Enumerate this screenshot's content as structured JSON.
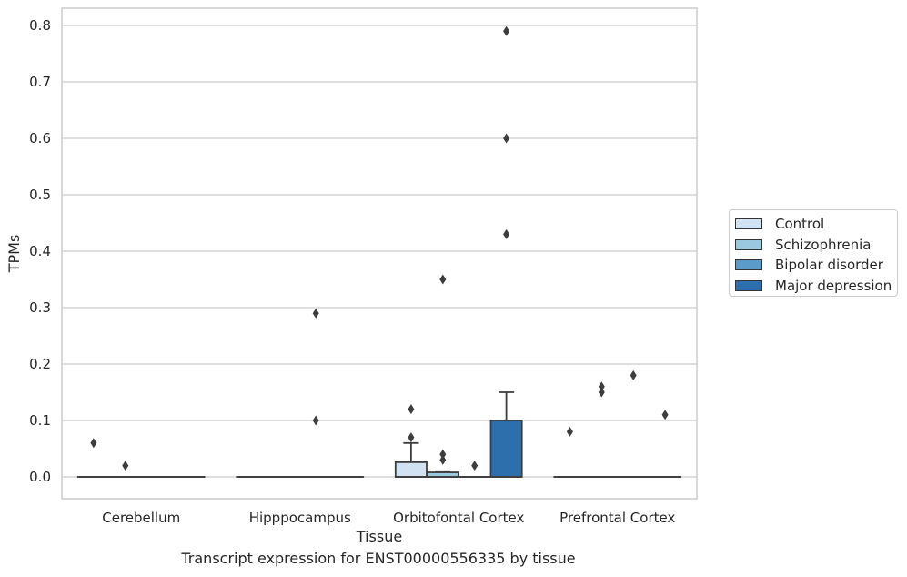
{
  "chart_data": {
    "type": "box",
    "title": "Transcript expression for ENST00000556335 by tissue",
    "xlabel": "Tissue",
    "ylabel": "TPMs",
    "ylim": [
      -0.04,
      0.83
    ],
    "yticks": [
      "0.0",
      "0.1",
      "0.2",
      "0.3",
      "0.4",
      "0.5",
      "0.6",
      "0.7",
      "0.8"
    ],
    "categories": [
      "Cerebellum",
      "Hipppocampus",
      "Orbitofontal Cortex",
      "Prefrontal Cortex"
    ],
    "grid": true,
    "legend_position": "right",
    "series": [
      {
        "name": "Control",
        "color": "#d1e2f2",
        "boxes": [
          {
            "q1": 0,
            "median": 0,
            "q3": 0,
            "whisker_low": 0,
            "whisker_high": 0,
            "outliers": [
              0.06
            ]
          },
          {
            "q1": 0,
            "median": 0,
            "q3": 0,
            "whisker_low": 0,
            "whisker_high": 0,
            "outliers": []
          },
          {
            "q1": 0,
            "median": 0,
            "q3": 0.026,
            "whisker_low": 0,
            "whisker_high": 0.06,
            "outliers": [
              0.07,
              0.12
            ]
          },
          {
            "q1": 0,
            "median": 0,
            "q3": 0,
            "whisker_low": 0,
            "whisker_high": 0,
            "outliers": [
              0.08
            ]
          }
        ]
      },
      {
        "name": "Schizophrenia",
        "color": "#9ac8e0",
        "boxes": [
          {
            "q1": 0,
            "median": 0,
            "q3": 0,
            "whisker_low": 0,
            "whisker_high": 0,
            "outliers": [
              0.02
            ]
          },
          {
            "q1": 0,
            "median": 0,
            "q3": 0,
            "whisker_low": 0,
            "whisker_high": 0,
            "outliers": []
          },
          {
            "q1": 0,
            "median": 0,
            "q3": 0.008,
            "whisker_low": 0,
            "whisker_high": 0.01,
            "outliers": [
              0.03,
              0.04,
              0.35
            ]
          },
          {
            "q1": 0,
            "median": 0,
            "q3": 0,
            "whisker_low": 0,
            "whisker_high": 0,
            "outliers": [
              0.15,
              0.16
            ]
          }
        ]
      },
      {
        "name": "Bipolar disorder",
        "color": "#5a9bc9",
        "boxes": [
          {
            "q1": 0,
            "median": 0,
            "q3": 0,
            "whisker_low": 0,
            "whisker_high": 0,
            "outliers": []
          },
          {
            "q1": 0,
            "median": 0,
            "q3": 0,
            "whisker_low": 0,
            "whisker_high": 0,
            "outliers": [
              0.1,
              0.29
            ]
          },
          {
            "q1": 0,
            "median": 0,
            "q3": 0,
            "whisker_low": 0,
            "whisker_high": 0,
            "outliers": [
              0.02
            ]
          },
          {
            "q1": 0,
            "median": 0,
            "q3": 0,
            "whisker_low": 0,
            "whisker_high": 0,
            "outliers": [
              0.18
            ]
          }
        ]
      },
      {
        "name": "Major depression",
        "color": "#2d6fad",
        "boxes": [
          {
            "q1": 0,
            "median": 0,
            "q3": 0,
            "whisker_low": 0,
            "whisker_high": 0,
            "outliers": []
          },
          {
            "q1": 0,
            "median": 0,
            "q3": 0,
            "whisker_low": 0,
            "whisker_high": 0,
            "outliers": []
          },
          {
            "q1": 0,
            "median": 0,
            "q3": 0.1,
            "whisker_low": 0,
            "whisker_high": 0.15,
            "outliers": [
              0.43,
              0.6,
              0.79
            ]
          },
          {
            "q1": 0,
            "median": 0,
            "q3": 0,
            "whisker_low": 0,
            "whisker_high": 0,
            "outliers": [
              0.11
            ]
          }
        ]
      }
    ]
  }
}
